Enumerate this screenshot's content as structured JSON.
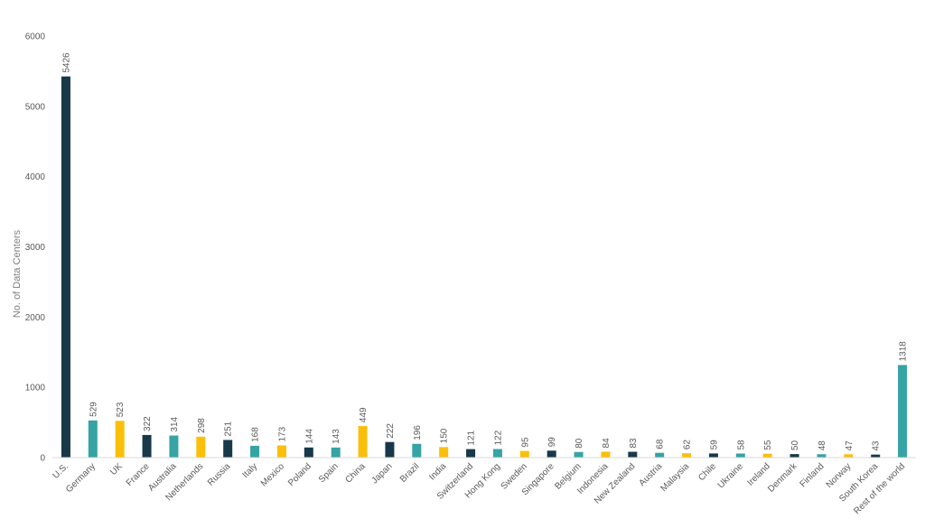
{
  "chart_data": {
    "type": "bar",
    "ylabel": "No. of Data Centers",
    "ylim": [
      0,
      6000
    ],
    "yticks": [
      0,
      1000,
      2000,
      3000,
      4000,
      5000,
      6000
    ],
    "grid": false,
    "categories": [
      "U.S.",
      "Germany",
      "UK",
      "France",
      "Australia",
      "Netherlands",
      "Russia",
      "Italy",
      "Mexico",
      "Poland",
      "Spain",
      "China",
      "Japan",
      "Brazil",
      "India",
      "Switzerland",
      "Hong Kong",
      "Sweden",
      "Singapore",
      "Belgium",
      "Indonesia",
      "New Zealand",
      "Austria",
      "Malaysia",
      "Chile",
      "Ukraine",
      "Ireland",
      "Denmark",
      "Finland",
      "Norway",
      "South Korea",
      "Rest of the world"
    ],
    "values": [
      5426,
      529,
      523,
      322,
      314,
      298,
      251,
      168,
      173,
      144,
      143,
      449,
      222,
      196,
      150,
      121,
      122,
      95,
      99,
      80,
      84,
      83,
      68,
      62,
      59,
      58,
      55,
      50,
      48,
      47,
      43,
      1318
    ],
    "palette": [
      "#17394a",
      "#36a3a5",
      "#fbbf09"
    ]
  }
}
